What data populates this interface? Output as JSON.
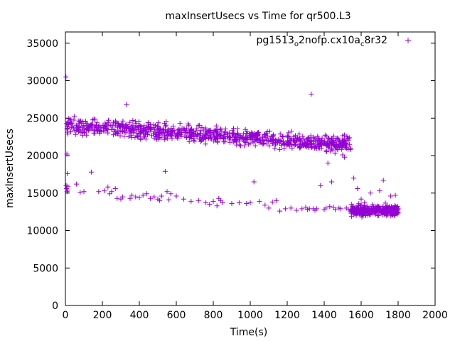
{
  "chart_data": {
    "type": "scatter",
    "title": "maxInsertUsecs vs Time for qr500.L3",
    "xlabel": "Time(s)",
    "ylabel": "maxInsertUsecs",
    "xlim": [
      0,
      2000
    ],
    "ylim": [
      0,
      36500
    ],
    "xticks": [
      0,
      200,
      400,
      600,
      800,
      1000,
      1200,
      1400,
      1600,
      1800,
      2000
    ],
    "yticks": [
      0,
      5000,
      10000,
      15000,
      20000,
      25000,
      30000,
      35000
    ],
    "grid": false,
    "legend_position": "top-right",
    "marker": "plus",
    "color": "#9400d3",
    "series": [
      {
        "name_parts": [
          "pg1513",
          "o",
          "2nofp.cx10a",
          "c",
          "8r32"
        ],
        "upper_band": {
          "x_range": [
            5,
            1545
          ],
          "start": {
            "x": 5,
            "center": 24000,
            "spread": 900
          },
          "end": {
            "x": 1545,
            "center": 21500,
            "spread": 900
          },
          "point_count": 900
        },
        "lower_band": {
          "x_range": [
            1545,
            1800
          ],
          "center": 12700,
          "spread": 600,
          "point_count": 340
        },
        "points": [
          [
            3,
            30500
          ],
          [
            8,
            20200
          ],
          [
            10,
            17600
          ],
          [
            4,
            16000
          ],
          [
            6,
            15600
          ],
          [
            9,
            15200
          ],
          [
            12,
            15400
          ],
          [
            14,
            15900
          ],
          [
            60,
            16200
          ],
          [
            80,
            15100
          ],
          [
            100,
            15200
          ],
          [
            140,
            17800
          ],
          [
            180,
            15200
          ],
          [
            210,
            15300
          ],
          [
            230,
            15800
          ],
          [
            240,
            14900
          ],
          [
            250,
            15200
          ],
          [
            270,
            15600
          ],
          [
            280,
            14300
          ],
          [
            300,
            14200
          ],
          [
            310,
            14500
          ],
          [
            330,
            26800
          ],
          [
            350,
            14300
          ],
          [
            360,
            14700
          ],
          [
            380,
            14500
          ],
          [
            400,
            14400
          ],
          [
            420,
            14700
          ],
          [
            440,
            14900
          ],
          [
            460,
            14300
          ],
          [
            480,
            14500
          ],
          [
            500,
            14200
          ],
          [
            510,
            14000
          ],
          [
            520,
            14600
          ],
          [
            540,
            17900
          ],
          [
            550,
            15200
          ],
          [
            560,
            14100
          ],
          [
            570,
            14900
          ],
          [
            600,
            14600
          ],
          [
            640,
            14200
          ],
          [
            680,
            13900
          ],
          [
            720,
            14000
          ],
          [
            760,
            13700
          ],
          [
            780,
            13500
          ],
          [
            800,
            13900
          ],
          [
            820,
            13300
          ],
          [
            830,
            14300
          ],
          [
            840,
            14000
          ],
          [
            850,
            13700
          ],
          [
            900,
            13600
          ],
          [
            940,
            13700
          ],
          [
            980,
            13600
          ],
          [
            1000,
            13700
          ],
          [
            1020,
            16500
          ],
          [
            1050,
            13900
          ],
          [
            1080,
            13400
          ],
          [
            1100,
            13000
          ],
          [
            1120,
            13800
          ],
          [
            1140,
            14000
          ],
          [
            1160,
            12600
          ],
          [
            1190,
            12900
          ],
          [
            1220,
            13000
          ],
          [
            1250,
            12700
          ],
          [
            1280,
            12900
          ],
          [
            1300,
            13100
          ],
          [
            1310,
            12800
          ],
          [
            1320,
            12900
          ],
          [
            1330,
            28200
          ],
          [
            1340,
            12900
          ],
          [
            1350,
            12700
          ],
          [
            1360,
            12900
          ],
          [
            1380,
            16000
          ],
          [
            1400,
            12800
          ],
          [
            1410,
            13000
          ],
          [
            1420,
            19000
          ],
          [
            1430,
            13200
          ],
          [
            1440,
            16500
          ],
          [
            1450,
            13100
          ],
          [
            1460,
            12800
          ],
          [
            1480,
            13000
          ],
          [
            1490,
            12900
          ],
          [
            1500,
            20100
          ],
          [
            1510,
            19800
          ],
          [
            1520,
            13000
          ],
          [
            1530,
            12800
          ],
          [
            1560,
            17000
          ],
          [
            1580,
            15600
          ],
          [
            1600,
            14200
          ],
          [
            1650,
            15000
          ],
          [
            1700,
            15300
          ],
          [
            1720,
            16700
          ],
          [
            1760,
            14600
          ],
          [
            1785,
            14700
          ],
          [
            1795,
            12200
          ]
        ]
      }
    ]
  }
}
